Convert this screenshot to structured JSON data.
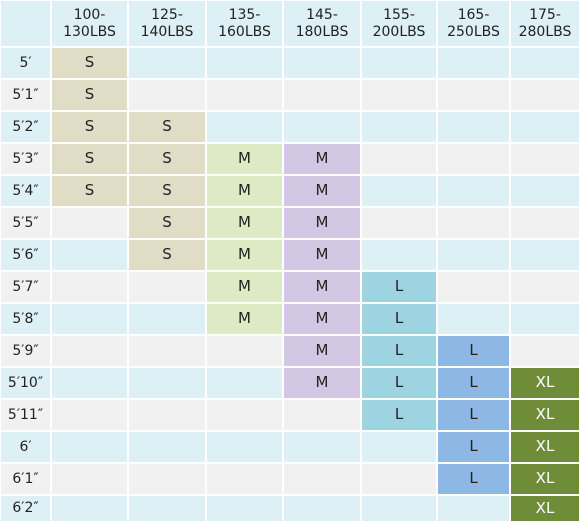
{
  "header": {
    "weight_columns": [
      "100-\n130LBS",
      "125-\n140LBS",
      "135-\n160LBS",
      "145-\n180LBS",
      "155-\n200LBS",
      "165-\n250LBS",
      "175-\n280LBS"
    ]
  },
  "rows": [
    {
      "height": "5′",
      "sizes": [
        "S",
        "",
        "",
        "",
        "",
        "",
        ""
      ]
    },
    {
      "height": "5′1″",
      "sizes": [
        "S",
        "",
        "",
        "",
        "",
        "",
        ""
      ]
    },
    {
      "height": "5′2″",
      "sizes": [
        "S",
        "S",
        "",
        "",
        "",
        "",
        ""
      ]
    },
    {
      "height": "5′3″",
      "sizes": [
        "S",
        "S",
        "M",
        "M",
        "",
        "",
        ""
      ]
    },
    {
      "height": "5′4″",
      "sizes": [
        "S",
        "S",
        "M",
        "M",
        "",
        "",
        ""
      ]
    },
    {
      "height": "5′5″",
      "sizes": [
        "",
        "S",
        "M",
        "M",
        "",
        "",
        ""
      ]
    },
    {
      "height": "5′6″",
      "sizes": [
        "",
        "S",
        "M",
        "M",
        "",
        "",
        ""
      ]
    },
    {
      "height": "5′7″",
      "sizes": [
        "",
        "",
        "M",
        "M",
        "L",
        "",
        ""
      ]
    },
    {
      "height": "5′8″",
      "sizes": [
        "",
        "",
        "M",
        "M",
        "L",
        "",
        ""
      ]
    },
    {
      "height": "5′9″",
      "sizes": [
        "",
        "",
        "",
        "M",
        "L",
        "L",
        ""
      ]
    },
    {
      "height": "5′10″",
      "sizes": [
        "",
        "",
        "",
        "M",
        "L",
        "L",
        "XL"
      ]
    },
    {
      "height": "5′11″",
      "sizes": [
        "",
        "",
        "",
        "",
        "L",
        "L",
        "XL"
      ]
    },
    {
      "height": "6′",
      "sizes": [
        "",
        "",
        "",
        "",
        "",
        "L",
        "XL"
      ]
    },
    {
      "height": "6′1″",
      "sizes": [
        "",
        "",
        "",
        "",
        "",
        "L",
        "XL"
      ]
    },
    {
      "height": "6′2″",
      "sizes": [
        "",
        "",
        "",
        "",
        "",
        "",
        "XL"
      ]
    }
  ],
  "colors": {
    "row_light": "#dcf0f6",
    "row_lighter": "#f1f1f1",
    "header": "#dcf0f6",
    "S": "#e1dcc6",
    "M_c": "#dcebc3",
    "M_d": "#d3c7e4",
    "L_e": "#9ed4e2",
    "L_f": "#8fb7e6",
    "XL": "#6f8d39"
  }
}
